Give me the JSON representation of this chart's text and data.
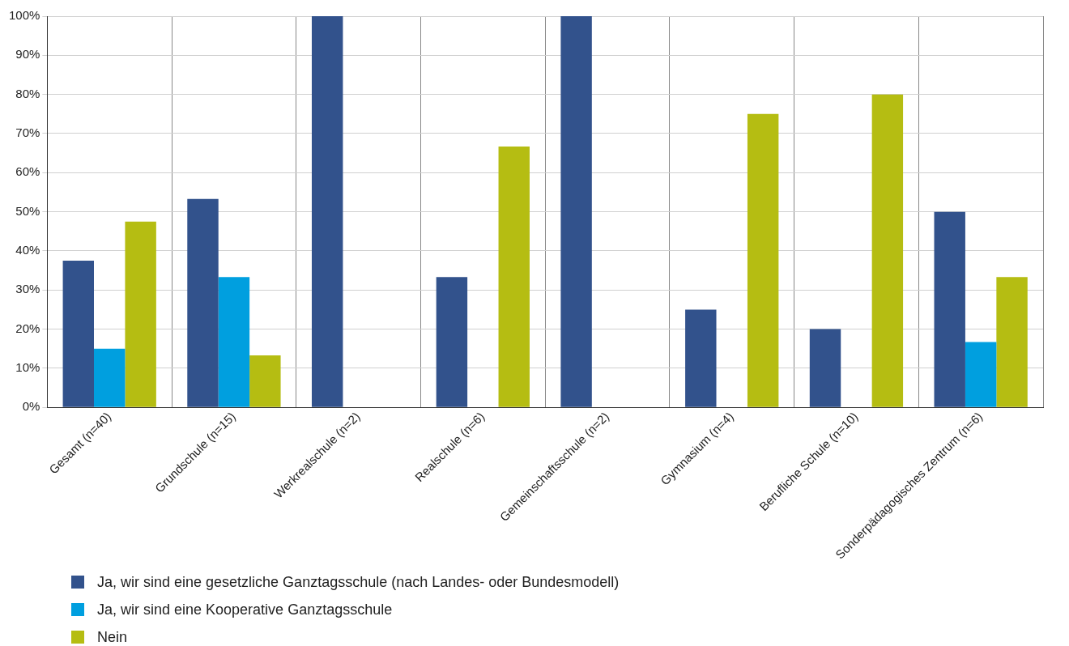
{
  "chart_data": {
    "type": "bar",
    "categories": [
      "Gesamt (n=40)",
      "Grundschule (n=15)",
      "Werkrealschule (n=2)",
      "Realschule (n=6)",
      "Gemeinschaftsschule (n=2)",
      "Gymnasium (n=4)",
      "Berufliche Schule (n=10)",
      "Sonderpädagogisches Zentrum (n=6)"
    ],
    "series": [
      {
        "name": "Ja, wir sind eine gesetzliche Ganztagsschule (nach Landes- oder Bundesmodell)",
        "color": "#32528c",
        "values": [
          37.5,
          53.3,
          100,
          33.3,
          100,
          25,
          20,
          50
        ]
      },
      {
        "name": "Ja, wir sind eine Kooperative Ganztagsschule",
        "color": "#009fdf",
        "values": [
          15,
          33.3,
          0,
          0,
          0,
          0,
          0,
          16.7
        ]
      },
      {
        "name": "Nein",
        "color": "#b5bd12",
        "values": [
          47.5,
          13.3,
          0,
          66.7,
          0,
          75,
          80,
          33.3
        ]
      }
    ],
    "ylim": [
      0,
      100
    ],
    "yticks": [
      {
        "value": 0,
        "label": "0%"
      },
      {
        "value": 10,
        "label": "10%"
      },
      {
        "value": 20,
        "label": "20%"
      },
      {
        "value": 30,
        "label": "30%"
      },
      {
        "value": 40,
        "label": "40%"
      },
      {
        "value": 50,
        "label": "50%"
      },
      {
        "value": 60,
        "label": "60%"
      },
      {
        "value": 70,
        "label": "70%"
      },
      {
        "value": 80,
        "label": "80%"
      },
      {
        "value": 90,
        "label": "90%"
      },
      {
        "value": 100,
        "label": "100%"
      }
    ],
    "grid": true,
    "legend": "bottom"
  }
}
